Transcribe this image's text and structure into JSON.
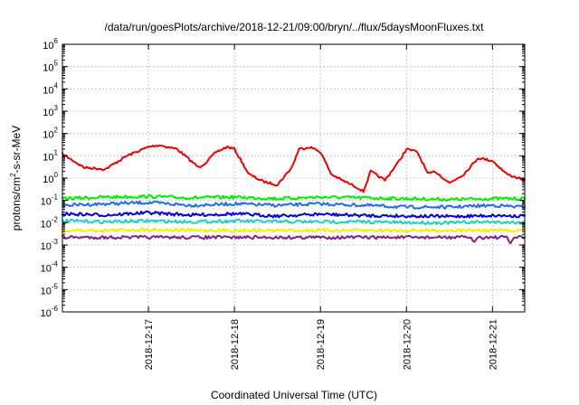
{
  "chart_data": {
    "type": "line",
    "title": "/data/run/goesPlots/archive/2018-12-21/09:00/bryn/../flux/5daysMoonFluxes.txt",
    "xlabel": "Coordinated Universal Time (UTC)",
    "ylabel": "protons/cm2-s-sr-MeV",
    "ylabel_parts": {
      "before": "protons/cm",
      "sup": "2",
      "after": "-s-sr-MeV"
    },
    "y_scale": "log",
    "ylim": [
      1e-06,
      1000000.0
    ],
    "y_tick_exponents": [
      -6,
      -5,
      -4,
      -3,
      -2,
      -1,
      0,
      1,
      2,
      3,
      4,
      5,
      6
    ],
    "y_tick_base": "10",
    "x_range": [
      "2018-12-16T00:00",
      "2018-12-21T09:00"
    ],
    "x_ticks": [
      "2018-12-17",
      "2018-12-18",
      "2018-12-19",
      "2018-12-20",
      "2018-12-21"
    ],
    "grid": true,
    "series": [
      {
        "color": "#ee0000",
        "x": [
          "2018-12-16T00:00",
          "2018-12-16T06:00",
          "2018-12-16T12:00",
          "2018-12-16T18:00",
          "2018-12-17T00:00",
          "2018-12-17T03:00",
          "2018-12-17T08:00",
          "2018-12-17T14:00",
          "2018-12-17T16:00",
          "2018-12-17T19:00",
          "2018-12-17T22:00",
          "2018-12-18T00:00",
          "2018-12-18T04:00",
          "2018-12-18T08:00",
          "2018-12-18T12:00",
          "2018-12-18T16:00",
          "2018-12-18T18:00",
          "2018-12-18T21:00",
          "2018-12-19T00:00",
          "2018-12-19T03:00",
          "2018-12-19T06:00",
          "2018-12-19T10:00",
          "2018-12-19T12:00",
          "2018-12-19T14:00",
          "2018-12-19T18:00",
          "2018-12-19T22:00",
          "2018-12-20T00:00",
          "2018-12-20T03:00",
          "2018-12-20T06:00",
          "2018-12-20T08:00",
          "2018-12-20T12:00",
          "2018-12-20T16:00",
          "2018-12-20T20:00",
          "2018-12-21T00:00",
          "2018-12-21T04:00",
          "2018-12-21T09:00"
        ],
        "values": [
          12,
          3,
          2.5,
          10,
          25,
          30,
          20,
          3,
          5,
          15,
          25,
          20,
          1.5,
          0.7,
          0.5,
          3,
          20,
          25,
          15,
          1.5,
          0.8,
          0.4,
          0.25,
          2,
          0.8,
          6,
          20,
          15,
          1.5,
          2,
          0.6,
          1.5,
          8,
          6,
          1.5,
          0.8
        ]
      },
      {
        "color": "#00ee00",
        "x": [
          "2018-12-16T00:00",
          "2018-12-16T12:00",
          "2018-12-17T00:00",
          "2018-12-17T12:00",
          "2018-12-18T00:00",
          "2018-12-18T12:00",
          "2018-12-19T00:00",
          "2018-12-19T12:00",
          "2018-12-20T00:00",
          "2018-12-20T12:00",
          "2018-12-21T00:00",
          "2018-12-21T09:00"
        ],
        "values": [
          0.12,
          0.14,
          0.15,
          0.13,
          0.14,
          0.12,
          0.14,
          0.13,
          0.12,
          0.11,
          0.12,
          0.12
        ]
      },
      {
        "color": "#1e6ee8",
        "x": [
          "2018-12-16T00:00",
          "2018-12-16T12:00",
          "2018-12-17T00:00",
          "2018-12-17T12:00",
          "2018-12-18T00:00",
          "2018-12-18T12:00",
          "2018-12-19T00:00",
          "2018-12-19T12:00",
          "2018-12-20T00:00",
          "2018-12-20T12:00",
          "2018-12-21T00:00",
          "2018-12-21T09:00"
        ],
        "values": [
          0.06,
          0.07,
          0.08,
          0.06,
          0.07,
          0.06,
          0.07,
          0.06,
          0.05,
          0.05,
          0.06,
          0.05
        ]
      },
      {
        "color": "#0000d0",
        "x": [
          "2018-12-16T00:00",
          "2018-12-16T12:00",
          "2018-12-17T00:00",
          "2018-12-17T12:00",
          "2018-12-18T00:00",
          "2018-12-18T12:00",
          "2018-12-19T00:00",
          "2018-12-19T12:00",
          "2018-12-20T00:00",
          "2018-12-20T12:00",
          "2018-12-21T00:00",
          "2018-12-21T09:00"
        ],
        "values": [
          0.025,
          0.022,
          0.028,
          0.022,
          0.025,
          0.02,
          0.024,
          0.021,
          0.02,
          0.019,
          0.021,
          0.02
        ]
      },
      {
        "color": "#20d0c0",
        "x": [
          "2018-12-16T00:00",
          "2018-12-16T12:00",
          "2018-12-17T00:00",
          "2018-12-17T12:00",
          "2018-12-18T00:00",
          "2018-12-18T12:00",
          "2018-12-19T00:00",
          "2018-12-19T12:00",
          "2018-12-20T00:00",
          "2018-12-20T12:00",
          "2018-12-21T00:00",
          "2018-12-21T09:00"
        ],
        "values": [
          0.012,
          0.011,
          0.012,
          0.011,
          0.012,
          0.011,
          0.011,
          0.011,
          0.01,
          0.01,
          0.011,
          0.01
        ]
      },
      {
        "color": "#f0f000",
        "x": [
          "2018-12-16T00:00",
          "2018-12-16T12:00",
          "2018-12-17T00:00",
          "2018-12-17T12:00",
          "2018-12-18T00:00",
          "2018-12-18T12:00",
          "2018-12-19T00:00",
          "2018-12-19T12:00",
          "2018-12-20T00:00",
          "2018-12-20T12:00",
          "2018-12-21T00:00",
          "2018-12-21T09:00"
        ],
        "values": [
          0.0045,
          0.0045,
          0.005,
          0.0045,
          0.0045,
          0.0045,
          0.0045,
          0.0045,
          0.0045,
          0.0045,
          0.0045,
          0.0045
        ]
      },
      {
        "color": "#802080",
        "x": [
          "2018-12-16T00:00",
          "2018-12-16T12:00",
          "2018-12-17T00:00",
          "2018-12-17T12:00",
          "2018-12-18T00:00",
          "2018-12-18T12:00",
          "2018-12-19T00:00",
          "2018-12-19T12:00",
          "2018-12-20T00:00",
          "2018-12-20T12:00",
          "2018-12-20T18:00",
          "2018-12-20T19:00",
          "2018-12-20T20:00",
          "2018-12-21T00:00",
          "2018-12-21T04:00",
          "2018-12-21T05:00",
          "2018-12-21T06:00",
          "2018-12-21T09:00"
        ],
        "values": [
          0.0022,
          0.0022,
          0.0022,
          0.0022,
          0.0022,
          0.0022,
          0.0022,
          0.0022,
          0.0022,
          0.0022,
          0.0022,
          0.0013,
          0.0022,
          0.0022,
          0.0022,
          0.0012,
          0.0022,
          0.0022
        ]
      }
    ]
  }
}
